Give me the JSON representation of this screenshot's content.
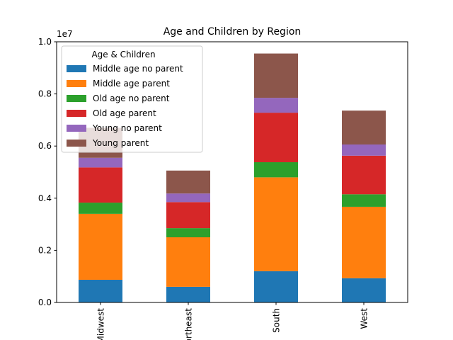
{
  "chart_data": {
    "type": "bar",
    "stacked": true,
    "title": "Age and Children by Region",
    "xlabel": "",
    "ylabel": "",
    "y_multiplier_label": "1e7",
    "ylim": [
      0,
      1.0
    ],
    "yticks": [
      "0.0",
      "0.2",
      "0.4",
      "0.6",
      "0.8",
      "1.0"
    ],
    "categories": [
      "Midwest",
      "Northeast",
      "South",
      "West"
    ],
    "legend": {
      "title": "Age & Children",
      "placement": "top-left"
    },
    "series": [
      {
        "name": "Middle age no parent",
        "color": "#1f77b4",
        "values": [
          0.087,
          0.06,
          0.12,
          0.093
        ]
      },
      {
        "name": "Middle age parent",
        "color": "#ff7f0e",
        "values": [
          0.253,
          0.19,
          0.36,
          0.274
        ]
      },
      {
        "name": "Old age no parent",
        "color": "#2ca02c",
        "values": [
          0.043,
          0.035,
          0.058,
          0.048
        ]
      },
      {
        "name": "Old age parent",
        "color": "#d62728",
        "values": [
          0.135,
          0.1,
          0.19,
          0.148
        ]
      },
      {
        "name": "Young no parent",
        "color": "#9467bd",
        "values": [
          0.037,
          0.033,
          0.057,
          0.043
        ]
      },
      {
        "name": "Young parent",
        "color": "#8c564b",
        "values": [
          0.115,
          0.088,
          0.17,
          0.13
        ]
      }
    ]
  }
}
